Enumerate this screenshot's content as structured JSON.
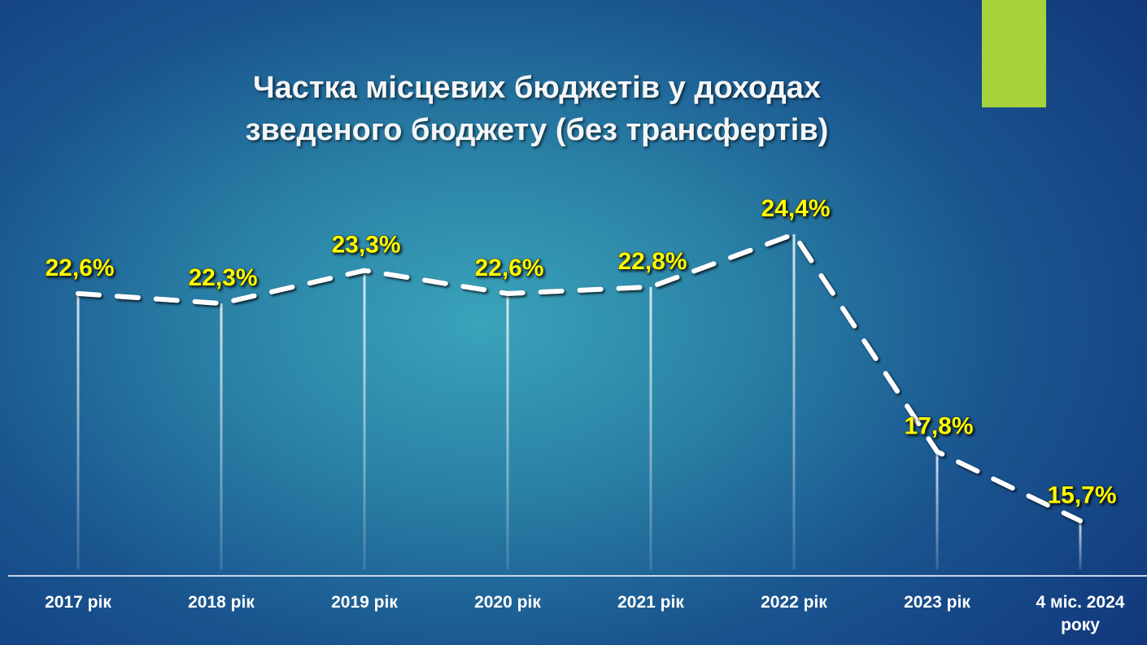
{
  "accent_color": "#a6d33b",
  "chart_data": {
    "type": "line",
    "title": "Частка місцевих бюджетів у доходах зведеного бюджету (без трансфертів)",
    "title_lines": [
      "Частка місцевих бюджетів у доходах",
      "зведеного бюджету (без трансфертів)"
    ],
    "categories": [
      "2017 рік",
      "2018 рік",
      "2019 рік",
      "2020 рік",
      "2021 рік",
      "2022 рік",
      "2023 рік",
      "4 міс. 2024 року"
    ],
    "category_lines": [
      [
        "2017 рік"
      ],
      [
        "2018 рік"
      ],
      [
        "2019 рік"
      ],
      [
        "2020 рік"
      ],
      [
        "2021 рік"
      ],
      [
        "2022 рік"
      ],
      [
        "2023 рік"
      ],
      [
        "4 міс. 2024",
        "року"
      ]
    ],
    "values": [
      22.6,
      22.3,
      23.3,
      22.6,
      22.8,
      24.4,
      17.8,
      15.7
    ],
    "data_labels": [
      "22,6%",
      "22,3%",
      "23,3%",
      "22,6%",
      "22,8%",
      "24,4%",
      "17,8%",
      "15,7%"
    ],
    "line_style": "dashed",
    "line_color": "#ffffff",
    "label_color": "#ffff00",
    "drop_lines": true,
    "grid": false,
    "y_axis_visible": false,
    "ylim": [
      14,
      25
    ]
  }
}
